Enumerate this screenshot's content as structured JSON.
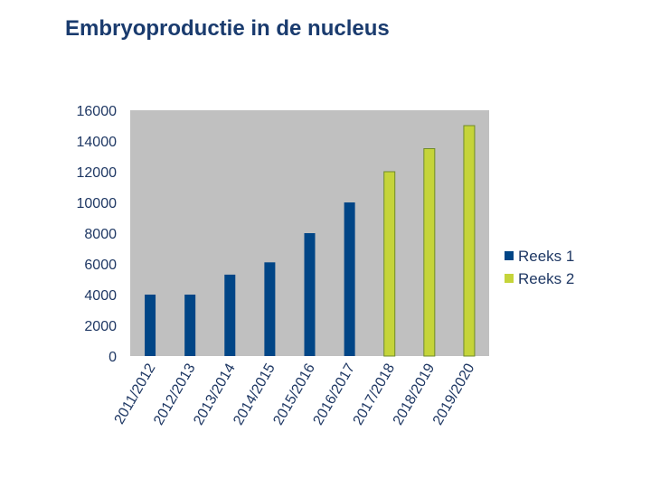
{
  "page": {
    "title": "Embryoproductie in de nucleus"
  },
  "chart_data": {
    "type": "bar",
    "categories": [
      "2011/2012",
      "2012/2013",
      "2013/2014",
      "2014/2015",
      "2015/2016",
      "2016/2017",
      "2017/2018",
      "2018/2019",
      "2019/2020"
    ],
    "series": [
      {
        "name": "Reeks 1",
        "color": "#004586",
        "values": [
          4000,
          4000,
          5300,
          6100,
          8000,
          10000,
          null,
          null,
          null
        ]
      },
      {
        "name": "Reeks 2",
        "color": "#c5d43a",
        "values": [
          null,
          null,
          null,
          null,
          null,
          null,
          12000,
          13500,
          15000
        ]
      }
    ],
    "title": "",
    "xlabel": "",
    "ylabel": "",
    "ylim": [
      0,
      16000
    ],
    "yticks": [
      0,
      2000,
      4000,
      6000,
      8000,
      10000,
      12000,
      14000,
      16000
    ],
    "grid": false,
    "plot_background": "#c0c0c0",
    "legend": "right"
  }
}
